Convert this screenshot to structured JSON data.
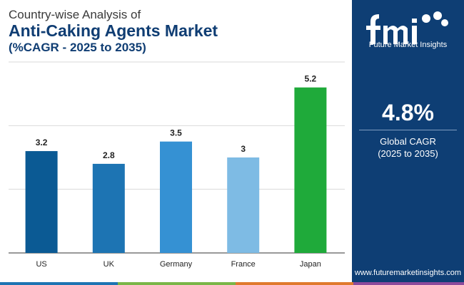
{
  "header": {
    "line1": "Country-wise Analysis of",
    "line2": "Anti-Caking Agents Market",
    "line3": "(%CAGR - 2025 to 2035)"
  },
  "chart_data": {
    "type": "bar",
    "categories": [
      "US",
      "UK",
      "Germany",
      "France",
      "Japan"
    ],
    "values": [
      3.2,
      2.8,
      3.5,
      3.0,
      5.2
    ],
    "value_labels": [
      "3.2",
      "2.8",
      "3.5",
      "3",
      "5.2"
    ],
    "colors": [
      "#0b5a94",
      "#1d74b3",
      "#3591d3",
      "#7ebbe4",
      "#1faa3a"
    ],
    "title": "Anti-Caking Agents Market",
    "xlabel": "",
    "ylabel": "",
    "ylim": [
      0,
      6
    ],
    "grid": true,
    "gridlines": [
      0,
      2,
      4,
      6
    ]
  },
  "sidebar": {
    "logo_text": "fmi",
    "logo_subtitle": "Future Market Insights",
    "cagr_value": "4.8%",
    "cagr_label_line1": "Global CAGR",
    "cagr_label_line2": "(2025 to 2035)",
    "website": "www.futuremarketinsights.com",
    "bg_color": "#0e3e74"
  },
  "footer": {
    "stripe_colors": [
      "#1d74b3",
      "#7ab648",
      "#e07a2e",
      "#8c4a9c"
    ]
  }
}
